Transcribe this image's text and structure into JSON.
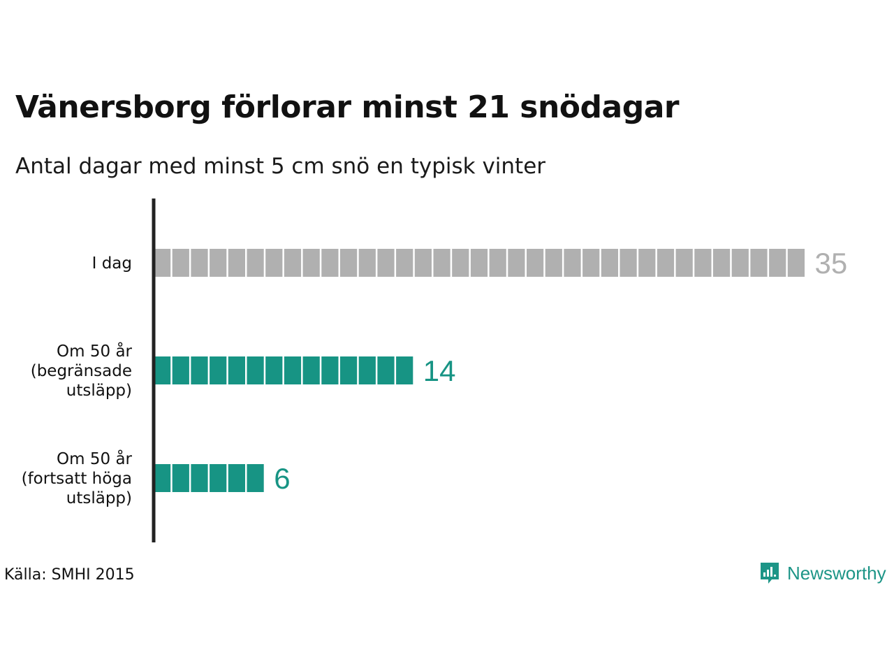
{
  "title": "Vänersborg förlorar minst 21 snödagar",
  "subtitle": "Antal dagar med minst 5 cm snö en typisk vinter",
  "source": "Källa: SMHI 2015",
  "brand": {
    "name": "Newsworthy",
    "icon": "newsworthy-logo-icon",
    "color": "#1d9587"
  },
  "colors": {
    "today": "#b0b0b0",
    "future": "#179484",
    "axis": "#222222"
  },
  "chart_data": {
    "type": "bar",
    "orientation": "horizontal",
    "unit_style": "one square per day",
    "categories": [
      [
        "I dag"
      ],
      [
        "Om 50 år",
        "(begränsade",
        "utsläpp)"
      ],
      [
        "Om 50 år",
        "(fortsatt höga",
        "utsläpp)"
      ]
    ],
    "values": [
      35,
      14,
      6
    ],
    "value_labels": [
      "35",
      "14",
      "6"
    ],
    "bar_colors": [
      "#b0b0b0",
      "#179484",
      "#179484"
    ],
    "grid": false,
    "legend": "none"
  }
}
